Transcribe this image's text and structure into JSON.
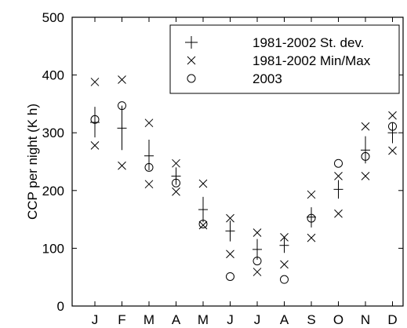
{
  "chart_data": {
    "type": "scatter",
    "title": "",
    "xlabel": "",
    "ylabel": "CCP per night (K h)",
    "ylim": [
      0,
      500
    ],
    "yticks": [
      0,
      100,
      200,
      300,
      400,
      500
    ],
    "categories": [
      "J",
      "F",
      "M",
      "A",
      "M",
      "J",
      "J",
      "A",
      "S",
      "O",
      "N",
      "D"
    ],
    "grid": false,
    "legend_position": "top-right",
    "series": [
      {
        "name": "1981-2002 St. dev.",
        "marker": "plus",
        "mean": [
          318,
          308,
          260,
          225,
          167,
          130,
          98,
          105,
          154,
          202,
          270,
          300
        ],
        "lower": [
          292,
          270,
          235,
          210,
          145,
          112,
          80,
          92,
          136,
          186,
          247,
          282
        ],
        "upper": [
          345,
          347,
          288,
          240,
          189,
          148,
          116,
          118,
          171,
          218,
          294,
          318
        ]
      },
      {
        "name": "1981-2002 Min/Max",
        "marker": "x",
        "min": [
          278,
          243,
          211,
          198,
          140,
          90,
          59,
          72,
          118,
          160,
          225,
          269
        ],
        "max": [
          388,
          392,
          317,
          247,
          212,
          152,
          127,
          119,
          193,
          225,
          311,
          330
        ]
      },
      {
        "name": "2003",
        "marker": "circle",
        "values": [
          323,
          347,
          240,
          213,
          142,
          51,
          78,
          46,
          152,
          247,
          259,
          311
        ]
      }
    ]
  }
}
